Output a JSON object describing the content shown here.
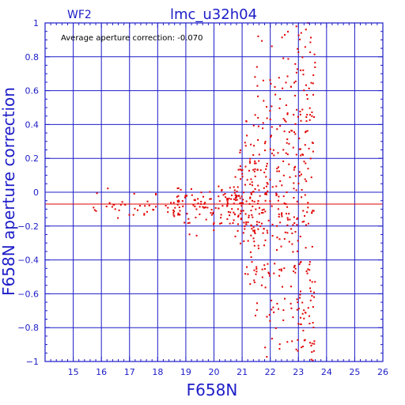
{
  "colors": {
    "frame": "#1c1cc8",
    "grid": "#1c1cc8",
    "text": "#1c1cc8",
    "points": "#e00000",
    "mean_line": "#e00000",
    "annotation": "#000000"
  },
  "chart_data": {
    "type": "scatter",
    "title": "lmc_u32h04",
    "subtitle": "WF2",
    "xlabel": "F658N",
    "ylabel": "F658N aperture correction",
    "annotation": "Average aperture correction: -0.070",
    "xlim": [
      14,
      26
    ],
    "ylim": [
      -1,
      1
    ],
    "xticks": [
      15,
      16,
      17,
      18,
      19,
      20,
      21,
      22,
      23,
      24,
      25,
      26
    ],
    "yticks": [
      -1,
      -0.8,
      -0.6,
      -0.4,
      -0.2,
      0,
      0.2,
      0.4,
      0.6,
      0.8,
      1
    ],
    "xtick_labels": [
      "15",
      "16",
      "17",
      "18",
      "19",
      "20",
      "21",
      "22",
      "23",
      "24",
      "25",
      "26"
    ],
    "ytick_labels": [
      "−1",
      "−0.8",
      "−0.6",
      "−0.4",
      "−0.2",
      "0",
      "0.2",
      "0.4",
      "0.6",
      "0.8",
      "1"
    ],
    "grid": true,
    "mean_value": -0.07,
    "distribution": {
      "x_range": [
        15.7,
        23.7
      ],
      "core_x_range": [
        20.8,
        23.5
      ],
      "bright_spread": 0.08,
      "faint_spread_min": -1.0,
      "faint_spread_max": 1.0,
      "approx_count": 700
    }
  }
}
